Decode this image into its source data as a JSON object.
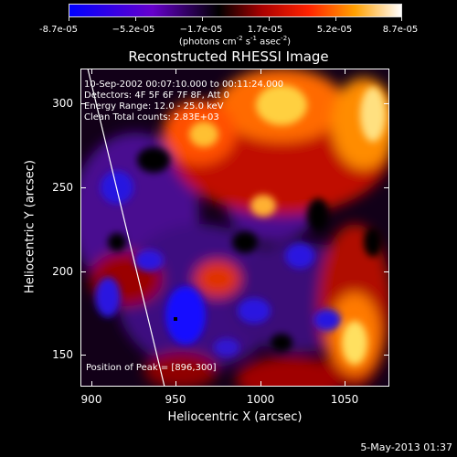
{
  "colorbar": {
    "labels": [
      "-8.7e-05",
      "−5.2e-05",
      "−1.7e-05",
      "1.7e-05",
      "5.2e-05",
      "8.7e-05"
    ],
    "units": "(photons cm",
    "units_exp1": "-2",
    "units_mid": " s",
    "units_exp2": "-1",
    "units_mid2": " asec",
    "units_exp3": "-2",
    "units_end": ")",
    "colors": [
      "#0000ff",
      "#6a00d0",
      "#000000",
      "#b00000",
      "#ff3000",
      "#ffa000",
      "#ffffff"
    ]
  },
  "title": "Reconstructed RHESSI Image",
  "annotations": {
    "time_range": "10-Sep-2002 00:07:10.000 to 00:11:24.000",
    "detectors": "Detectors: 4F 5F 6F 7F 8F, Att 0",
    "energy": "Energy Range: 12.0 - 25.0 keV",
    "clean": "Clean    Total counts: 2.83E+03",
    "peak": "Position of Peak = [896,300]"
  },
  "axes": {
    "x_title": "Heliocentric X (arcsec)",
    "y_title": "Heliocentric Y (arcsec)",
    "x_ticks": [
      "900",
      "950",
      "1000",
      "1050"
    ],
    "y_ticks": [
      "300",
      "250",
      "200",
      "150"
    ]
  },
  "datestamp": "5-May-2013 01:37"
}
